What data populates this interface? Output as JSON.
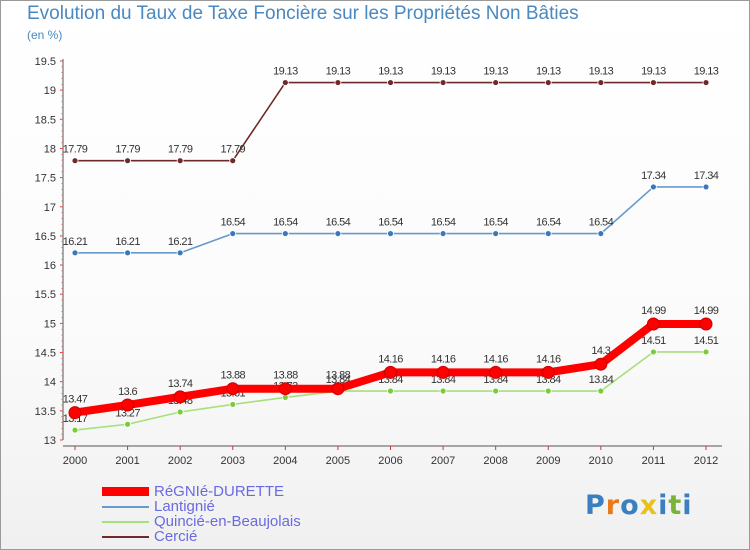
{
  "chart_data": {
    "type": "line",
    "title": "Evolution du Taux de Taxe Foncière sur les Propriétés Non Bâties",
    "subtitle": "(en %)",
    "xlabel": "",
    "ylabel": "(en %)",
    "ylim": [
      13,
      19.5
    ],
    "yticks": [
      13,
      13.5,
      14,
      14.5,
      15,
      15.5,
      16,
      16.5,
      17,
      17.5,
      18,
      18.5,
      19,
      19.5
    ],
    "categories": [
      "2000",
      "2001",
      "2002",
      "2003",
      "2004",
      "2005",
      "2006",
      "2007",
      "2008",
      "2009",
      "2010",
      "2011",
      "2012"
    ],
    "series": [
      {
        "name": "Cercié",
        "color": "#6e2a2a",
        "marker": "#6e2a2a",
        "values": [
          17.79,
          17.79,
          17.79,
          17.79,
          19.13,
          19.13,
          19.13,
          19.13,
          19.13,
          19.13,
          19.13,
          19.13,
          19.13
        ]
      },
      {
        "name": "Lantignié",
        "color": "#6699cc",
        "marker": "#3a78b8",
        "values": [
          16.21,
          16.21,
          16.21,
          16.54,
          16.54,
          16.54,
          16.54,
          16.54,
          16.54,
          16.54,
          16.54,
          17.34,
          17.34
        ]
      },
      {
        "name": "Quincié-en-Beaujolais",
        "color": "#a6e07a",
        "marker": "#7acc3a",
        "values": [
          13.17,
          13.27,
          13.48,
          13.61,
          13.73,
          13.84,
          13.84,
          13.84,
          13.84,
          13.84,
          13.84,
          14.51,
          14.51
        ]
      },
      {
        "name": "RéGNIé-DURETTE",
        "color": "#ff0000",
        "marker": "#ff0000",
        "values": [
          13.47,
          13.6,
          13.74,
          13.88,
          13.88,
          13.88,
          14.16,
          14.16,
          14.16,
          14.16,
          14.3,
          14.99,
          14.99
        ]
      }
    ],
    "legend": {
      "position": "bottom-left",
      "entries": [
        "RéGNIé-DURETTE",
        "Lantignié",
        "Quincié-en-Beaujolais",
        "Cercié"
      ]
    }
  },
  "logo": {
    "text": "Proxiti",
    "letters": [
      "P",
      "r",
      "o",
      "x",
      "i",
      "t",
      "i"
    ],
    "colors": [
      "#3a7fc0",
      "#e87a1a",
      "#3a7fc0",
      "#e8c21a",
      "#3a7fc0",
      "#7ab23a",
      "#3a7fc0"
    ]
  }
}
